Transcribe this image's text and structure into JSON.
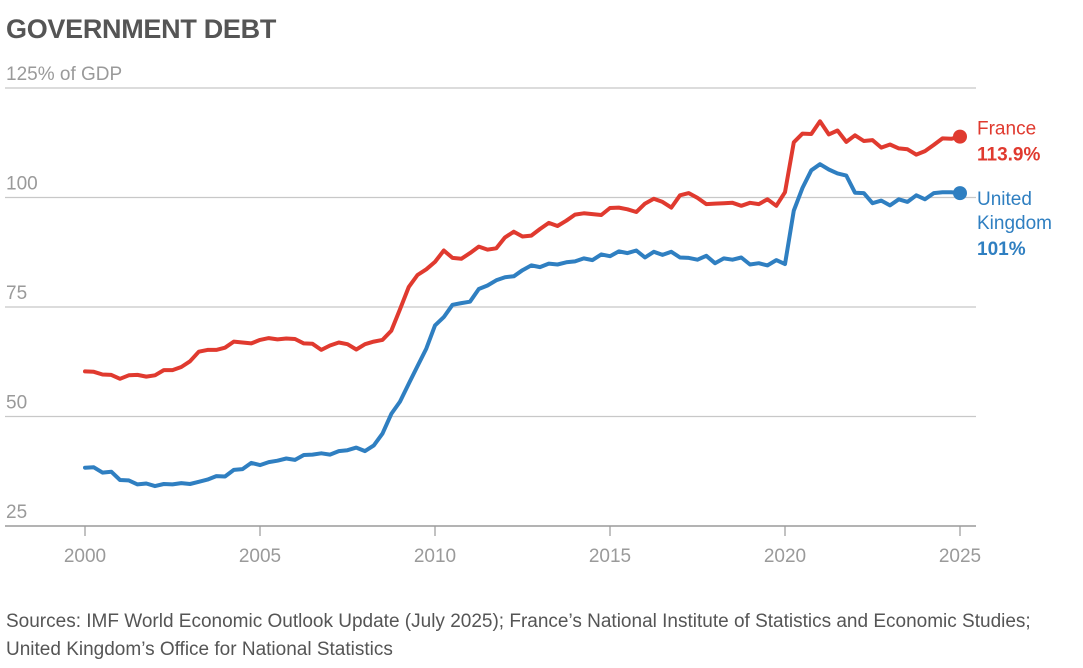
{
  "title": "GOVERNMENT DEBT",
  "source": "Sources: IMF World Economic Outlook Update (July 2025); France’s National Institute of Statistics and Economic Studies; United Kingdom’s Office for National Statistics",
  "chart_data": {
    "type": "line",
    "title": "GOVERNMENT DEBT",
    "ylabel": "% of GDP",
    "ylim": [
      25,
      125
    ],
    "xlim": [
      2000,
      2025
    ],
    "grid": true,
    "legend": "right",
    "y_ticks": [
      25,
      50,
      75,
      100,
      125
    ],
    "y_tick_labels": [
      "25",
      "50",
      "75",
      "100",
      "125% of GDP"
    ],
    "x_ticks": [
      2000,
      2005,
      2010,
      2015,
      2020,
      2025
    ],
    "x_tick_labels": [
      "2000",
      "2005",
      "2010",
      "2015",
      "2020",
      "2025"
    ],
    "series": [
      {
        "name": "France",
        "end_label": "113.9%",
        "color": "#e03a2f",
        "x": [
          2000.0,
          2000.25,
          2000.5,
          2000.75,
          2001.0,
          2001.25,
          2001.5,
          2001.75,
          2002.0,
          2002.25,
          2002.5,
          2002.75,
          2003.0,
          2003.25,
          2003.5,
          2003.75,
          2004.0,
          2004.25,
          2004.5,
          2004.75,
          2005.0,
          2005.25,
          2005.5,
          2005.75,
          2006.0,
          2006.25,
          2006.5,
          2006.75,
          2007.0,
          2007.25,
          2007.5,
          2007.75,
          2008.0,
          2008.25,
          2008.5,
          2008.75,
          2009.0,
          2009.25,
          2009.5,
          2009.75,
          2010.0,
          2010.25,
          2010.5,
          2010.75,
          2011.0,
          2011.25,
          2011.5,
          2011.75,
          2012.0,
          2012.25,
          2012.5,
          2012.75,
          2013.0,
          2013.25,
          2013.5,
          2013.75,
          2014.0,
          2014.25,
          2014.5,
          2014.75,
          2015.0,
          2015.25,
          2015.5,
          2015.75,
          2016.0,
          2016.25,
          2016.5,
          2016.75,
          2017.0,
          2017.25,
          2017.5,
          2017.75,
          2018.0,
          2018.25,
          2018.5,
          2018.75,
          2019.0,
          2019.25,
          2019.5,
          2019.75,
          2020.0,
          2020.25,
          2020.5,
          2020.75,
          2021.0,
          2021.25,
          2021.5,
          2021.75,
          2022.0,
          2022.25,
          2022.5,
          2022.75,
          2023.0,
          2023.25,
          2023.5,
          2023.75,
          2024.0,
          2024.25,
          2024.5,
          2024.75,
          2025.0
        ],
        "values": [
          60.3,
          60.2,
          59.6,
          59.5,
          58.6,
          59.4,
          59.5,
          59.1,
          59.4,
          60.6,
          60.6,
          61.3,
          62.6,
          64.8,
          65.2,
          65.2,
          65.7,
          67.1,
          66.9,
          66.7,
          67.5,
          67.9,
          67.6,
          67.8,
          67.7,
          66.7,
          66.6,
          65.2,
          66.2,
          66.9,
          66.5,
          65.3,
          66.5,
          67.1,
          67.5,
          69.6,
          74.5,
          79.6,
          82.3,
          83.6,
          85.3,
          87.9,
          86.2,
          86.0,
          87.3,
          88.8,
          88.1,
          88.4,
          90.9,
          92.2,
          91.1,
          91.3,
          92.8,
          94.2,
          93.5,
          94.7,
          96.1,
          96.4,
          96.2,
          96.0,
          97.6,
          97.7,
          97.3,
          96.7,
          98.6,
          99.7,
          99.0,
          97.7,
          100.5,
          101.0,
          99.9,
          98.5,
          98.6,
          98.7,
          98.8,
          98.1,
          98.8,
          98.5,
          99.6,
          98.1,
          101.2,
          112.6,
          114.6,
          114.5,
          117.4,
          114.4,
          115.3,
          112.7,
          114.2,
          112.9,
          113.1,
          111.4,
          112.1,
          111.2,
          111.0,
          109.8,
          110.6,
          112.0,
          113.5,
          113.4,
          113.9
        ]
      },
      {
        "name": "United Kingdom",
        "end_label": "101%",
        "color": "#2f7fc1",
        "x": [
          2000.0,
          2000.25,
          2000.5,
          2000.75,
          2001.0,
          2001.25,
          2001.5,
          2001.75,
          2002.0,
          2002.25,
          2002.5,
          2002.75,
          2003.0,
          2003.25,
          2003.5,
          2003.75,
          2004.0,
          2004.25,
          2004.5,
          2004.75,
          2005.0,
          2005.25,
          2005.5,
          2005.75,
          2006.0,
          2006.25,
          2006.5,
          2006.75,
          2007.0,
          2007.25,
          2007.5,
          2007.75,
          2008.0,
          2008.25,
          2008.5,
          2008.75,
          2009.0,
          2009.25,
          2009.5,
          2009.75,
          2010.0,
          2010.25,
          2010.5,
          2010.75,
          2011.0,
          2011.25,
          2011.5,
          2011.75,
          2012.0,
          2012.25,
          2012.5,
          2012.75,
          2013.0,
          2013.25,
          2013.5,
          2013.75,
          2014.0,
          2014.25,
          2014.5,
          2014.75,
          2015.0,
          2015.25,
          2015.5,
          2015.75,
          2016.0,
          2016.25,
          2016.5,
          2016.75,
          2017.0,
          2017.25,
          2017.5,
          2017.75,
          2018.0,
          2018.25,
          2018.5,
          2018.75,
          2019.0,
          2019.25,
          2019.5,
          2019.75,
          2020.0,
          2020.25,
          2020.5,
          2020.75,
          2021.0,
          2021.25,
          2021.5,
          2021.75,
          2022.0,
          2022.25,
          2022.5,
          2022.75,
          2023.0,
          2023.25,
          2023.5,
          2023.75,
          2024.0,
          2024.25,
          2024.5,
          2024.75,
          2025.0
        ],
        "values": [
          38.3,
          38.4,
          37.2,
          37.4,
          35.5,
          35.4,
          34.5,
          34.7,
          34.1,
          34.6,
          34.5,
          34.8,
          34.6,
          35.1,
          35.6,
          36.4,
          36.3,
          37.8,
          38.0,
          39.4,
          38.9,
          39.6,
          39.9,
          40.4,
          40.1,
          41.2,
          41.3,
          41.6,
          41.3,
          42.1,
          42.3,
          42.9,
          42.1,
          43.4,
          46.1,
          50.6,
          53.4,
          57.5,
          61.5,
          65.5,
          70.8,
          72.7,
          75.5,
          75.9,
          76.2,
          79.1,
          79.9,
          81.1,
          81.8,
          82.0,
          83.4,
          84.5,
          84.1,
          84.9,
          84.7,
          85.2,
          85.4,
          86.1,
          85.7,
          87.0,
          86.6,
          87.7,
          87.3,
          87.9,
          86.3,
          87.6,
          86.9,
          87.6,
          86.3,
          86.2,
          85.8,
          86.7,
          85.0,
          86.1,
          85.8,
          86.3,
          84.7,
          85.0,
          84.5,
          85.7,
          84.8,
          97.0,
          102.2,
          106.2,
          107.6,
          106.4,
          105.5,
          105.0,
          101.1,
          101.0,
          98.7,
          99.3,
          98.2,
          99.6,
          99.0,
          100.5,
          99.6,
          101.0,
          101.2,
          101.2,
          101.0
        ]
      }
    ]
  }
}
